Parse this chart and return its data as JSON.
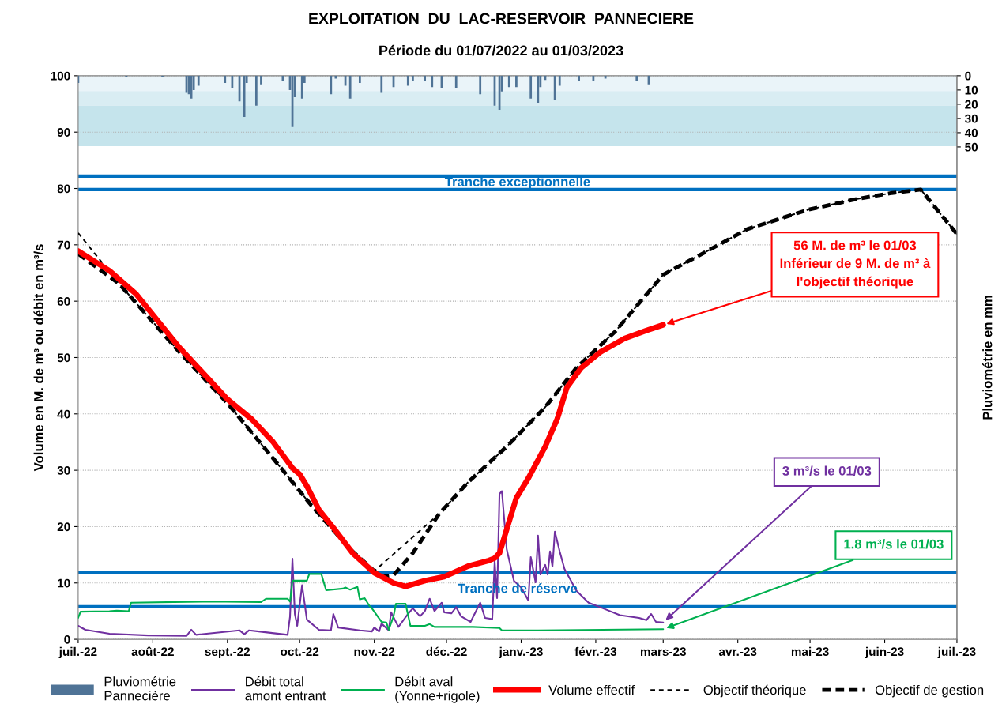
{
  "chart_data": {
    "type": "line",
    "title": "EXPLOITATION  DU  LAC-RESERVOIR  PANNECIERE",
    "subtitle": "Période du 01/07/2022 au 01/03/2023",
    "ylabel": "Volume en M. de m³ ou débit en m³/s",
    "y2label": "Pluviométrie en mm",
    "xlim": [
      "2022-07-01",
      "2023-07-01"
    ],
    "xticks": [
      {
        "value": "2022-07-01",
        "label": "juil.-22"
      },
      {
        "value": "2022-08-01",
        "label": "août-22"
      },
      {
        "value": "2022-09-01",
        "label": "sept.-22"
      },
      {
        "value": "2022-10-01",
        "label": "oct.-22"
      },
      {
        "value": "2022-11-01",
        "label": "nov.-22"
      },
      {
        "value": "2022-12-01",
        "label": "déc.-22"
      },
      {
        "value": "2023-01-01",
        "label": "janv.-23"
      },
      {
        "value": "2023-02-01",
        "label": "févr.-23"
      },
      {
        "value": "2023-03-01",
        "label": "mars-23"
      },
      {
        "value": "2023-04-01",
        "label": "avr.-23"
      },
      {
        "value": "2023-05-01",
        "label": "mai-23"
      },
      {
        "value": "2023-06-01",
        "label": "juin-23"
      },
      {
        "value": "2023-07-01",
        "label": "juil.-23"
      }
    ],
    "ylim": [
      0,
      100
    ],
    "yticks": [
      0,
      10,
      20,
      30,
      40,
      50,
      60,
      70,
      80,
      90,
      100
    ],
    "y2lim": [
      396,
      0
    ],
    "y2ticks": [
      0,
      10,
      20,
      30,
      40,
      50
    ],
    "grid": "y",
    "legend": "bottom",
    "series": [
      {
        "name": "Pluviométrie\nPannecière",
        "type": "bar",
        "axis": "y2",
        "color": "#4f7396",
        "x": [
          "2022-07-01",
          "2022-07-21",
          "2022-08-05",
          "2022-08-15",
          "2022-08-16",
          "2022-08-17",
          "2022-08-18",
          "2022-08-20",
          "2022-08-31",
          "2022-09-03",
          "2022-09-06",
          "2022-09-08",
          "2022-09-09",
          "2022-09-13",
          "2022-09-15",
          "2022-09-24",
          "2022-09-27",
          "2022-09-28",
          "2022-09-29",
          "2022-10-02",
          "2022-10-03",
          "2022-10-14",
          "2022-10-16",
          "2022-10-20",
          "2022-10-22",
          "2022-10-26",
          "2022-11-04",
          "2022-11-09",
          "2022-11-15",
          "2022-11-17",
          "2022-11-22",
          "2022-11-25",
          "2022-11-29",
          "2022-12-05",
          "2022-12-15",
          "2022-12-21",
          "2022-12-23",
          "2022-12-24",
          "2022-12-27",
          "2022-12-30",
          "2023-01-05",
          "2023-01-08",
          "2023-01-09",
          "2023-01-11",
          "2023-01-15",
          "2023-01-17",
          "2023-01-25",
          "2023-01-31",
          "2023-02-05",
          "2023-02-18",
          "2023-02-23"
        ],
        "values": [
          5,
          1,
          1,
          12,
          13,
          16,
          10,
          7,
          5,
          9,
          18,
          29,
          5,
          21,
          6,
          4,
          10,
          36,
          15,
          16,
          5,
          13,
          2,
          7,
          16,
          5,
          12,
          8,
          7,
          4,
          4,
          8,
          9,
          9,
          13,
          21,
          24,
          11,
          8,
          8,
          16,
          19,
          8,
          3,
          17,
          7,
          4,
          4,
          2,
          4,
          6
        ]
      },
      {
        "name": "Débit total\namont entrant",
        "color": "#7030a0",
        "x": [
          "2022-07-01",
          "2022-07-04",
          "2022-07-14",
          "2022-07-30",
          "2022-08-15",
          "2022-08-17",
          "2022-08-19",
          "2022-09-06",
          "2022-09-08",
          "2022-09-10",
          "2022-09-14",
          "2022-09-26",
          "2022-09-27",
          "2022-09-28",
          "2022-09-29",
          "2022-09-30",
          "2022-10-02",
          "2022-10-04",
          "2022-10-09",
          "2022-10-14",
          "2022-10-15",
          "2022-10-17",
          "2022-10-26",
          "2022-10-31",
          "2022-11-01",
          "2022-11-03",
          "2022-11-04",
          "2022-11-07",
          "2022-11-08",
          "2022-11-11",
          "2022-11-15",
          "2022-11-17",
          "2022-11-20",
          "2022-11-22",
          "2022-11-24",
          "2022-11-26",
          "2022-11-29",
          "2022-11-30",
          "2022-12-03",
          "2022-12-05",
          "2022-12-07",
          "2022-12-11",
          "2022-12-15",
          "2022-12-17",
          "2022-12-20",
          "2022-12-21",
          "2022-12-22",
          "2022-12-23",
          "2022-12-24",
          "2022-12-26",
          "2022-12-29",
          "2023-01-01",
          "2023-01-04",
          "2023-01-05",
          "2023-01-07",
          "2023-01-08",
          "2023-01-09",
          "2023-01-11",
          "2023-01-12",
          "2023-01-13",
          "2023-01-14",
          "2023-01-15",
          "2023-01-17",
          "2023-01-19",
          "2023-01-24",
          "2023-01-29",
          "2023-02-04",
          "2023-02-11",
          "2023-02-19",
          "2023-02-22",
          "2023-02-24",
          "2023-02-26",
          "2023-03-01"
        ],
        "values": [
          2.4,
          1.7,
          1.0,
          0.7,
          0.6,
          1.7,
          0.8,
          1.6,
          0.9,
          1.6,
          1.4,
          0.8,
          4,
          14.3,
          4.5,
          2.4,
          9.6,
          3.5,
          1.7,
          1.6,
          4.5,
          2.1,
          1.6,
          1.4,
          2.1,
          1.4,
          2.8,
          1.6,
          4.8,
          2.2,
          4.5,
          5.5,
          4.1,
          5,
          7.2,
          5,
          6.5,
          4.8,
          4.6,
          5.7,
          4.1,
          3.1,
          6.5,
          3.8,
          3.6,
          13.9,
          7.3,
          25.8,
          26.3,
          16,
          10.4,
          9.2,
          6.9,
          14.6,
          10.1,
          18.4,
          11.5,
          13.2,
          11.5,
          15.6,
          12.9,
          19.1,
          15.6,
          12.5,
          8.6,
          6.5,
          5.5,
          4.3,
          3.8,
          3.4,
          4.5,
          3.1,
          3.0
        ]
      },
      {
        "name": "Débit aval\n(Yonne+rigole)",
        "color": "#00b050",
        "x": [
          "2022-07-01",
          "2022-07-02",
          "2022-07-14",
          "2022-07-17",
          "2022-07-22",
          "2022-07-23",
          "2022-08-24",
          "2022-09-15",
          "2022-09-17",
          "2022-09-26",
          "2022-09-27",
          "2022-09-28",
          "2022-10-04",
          "2022-10-05",
          "2022-10-10",
          "2022-10-12",
          "2022-10-19",
          "2022-10-20",
          "2022-10-22",
          "2022-10-25",
          "2022-10-26",
          "2022-10-28",
          "2022-10-30",
          "2022-10-31",
          "2022-11-04",
          "2022-11-06",
          "2022-11-07",
          "2022-11-09",
          "2022-11-10",
          "2022-11-14",
          "2022-11-16",
          "2022-11-22",
          "2022-11-24",
          "2022-11-26",
          "2022-12-12",
          "2022-12-23",
          "2022-12-24",
          "2023-01-08",
          "2023-03-01"
        ],
        "values": [
          3.8,
          4.9,
          5.0,
          5.1,
          5.0,
          6.5,
          6.7,
          6.6,
          7.2,
          7.2,
          6.7,
          10.4,
          10.4,
          11.6,
          11.6,
          8.7,
          9.0,
          9.2,
          8.8,
          9.3,
          7.1,
          7.3,
          5.9,
          5.5,
          3.1,
          3.0,
          1.7,
          4.1,
          6.3,
          6.3,
          2.4,
          2.4,
          2.7,
          2.2,
          2.2,
          2.0,
          1.6,
          1.6,
          1.8
        ]
      },
      {
        "name": "Volume effectif",
        "color": "#ff0000",
        "x": [
          "2022-07-01",
          "2022-07-14",
          "2022-07-25",
          "2022-08-12",
          "2022-09-01",
          "2022-09-11",
          "2022-09-20",
          "2022-09-28",
          "2022-10-01",
          "2022-10-04",
          "2022-10-09",
          "2022-10-15",
          "2022-10-23",
          "2022-11-01",
          "2022-11-09",
          "2022-11-14",
          "2022-11-22",
          "2022-11-30",
          "2022-12-10",
          "2022-12-18",
          "2022-12-21",
          "2022-12-23",
          "2022-12-26",
          "2022-12-30",
          "2023-01-04",
          "2023-01-11",
          "2023-01-16",
          "2023-01-20",
          "2023-01-26",
          "2023-02-03",
          "2023-02-13",
          "2023-02-22",
          "2023-03-01"
        ],
        "values": [
          68.9,
          65.4,
          61.3,
          51.8,
          42.6,
          39.1,
          35,
          30.4,
          29.3,
          27.2,
          23,
          19.8,
          15.3,
          11.8,
          10,
          9.4,
          10.4,
          11.1,
          13,
          13.9,
          14.4,
          15.3,
          19.5,
          25.1,
          28.6,
          34.2,
          39.1,
          44.7,
          48.2,
          51,
          53.4,
          54.8,
          55.8
        ]
      },
      {
        "name": "Objectif théorique",
        "color": "#000000",
        "line_style": "dashed",
        "x": [
          "2022-07-01",
          "2022-07-18",
          "2022-08-12",
          "2022-09-01",
          "2022-09-20",
          "2022-10-06",
          "2022-10-22",
          "2022-11-01",
          "2022-11-28",
          "2022-12-10",
          "2022-12-26",
          "2023-01-11",
          "2023-01-24",
          "2023-02-09",
          "2023-03-01",
          "2023-03-18",
          "2023-04-05",
          "2023-04-30",
          "2023-05-20",
          "2023-06-04",
          "2023-06-16",
          "2023-07-01"
        ],
        "values": [
          72.1,
          63.1,
          51,
          41.9,
          32.1,
          23.7,
          16,
          12.1,
          22.3,
          27.9,
          34.2,
          41.2,
          48.2,
          54.6,
          64.7,
          68.6,
          72.8,
          76.2,
          78.1,
          79.2,
          79.8,
          71.9
        ]
      },
      {
        "name": "Objectif de gestion",
        "color": "#000000",
        "line_style": "dashed",
        "x": [
          "2022-07-01",
          "2022-07-18",
          "2022-08-12",
          "2022-09-01",
          "2022-09-20",
          "2022-10-06",
          "2022-10-22",
          "2022-11-01",
          "2022-11-04",
          "2022-11-09",
          "2022-11-17",
          "2022-11-28",
          "2022-12-10",
          "2022-12-26",
          "2023-01-11",
          "2023-01-24",
          "2023-02-09",
          "2023-03-01",
          "2023-03-18",
          "2023-04-05",
          "2023-04-30",
          "2023-05-20",
          "2023-06-04",
          "2023-06-16",
          "2023-07-01"
        ],
        "values": [
          68.4,
          63.1,
          51,
          41.9,
          32.1,
          23.7,
          16,
          12.1,
          11.1,
          11.4,
          15.3,
          22.3,
          27.9,
          34.2,
          41.2,
          48.2,
          54.6,
          64.7,
          68.6,
          72.8,
          76.2,
          78.1,
          79.2,
          79.8,
          71.9
        ]
      }
    ],
    "ref_lines": [
      {
        "axis": "y",
        "value": 82.2,
        "color": "#0070c0"
      },
      {
        "axis": "y",
        "value": 79.8,
        "label": "Tranche exceptionnelle",
        "color": "#0070c0"
      },
      {
        "axis": "y",
        "value": 11.9,
        "color": "#0070c0"
      },
      {
        "axis": "y",
        "value": 5.8,
        "label": "Tranche de réserve",
        "color": "#0070c0"
      }
    ],
    "bands": [
      {
        "axis": "y",
        "from": 97.3,
        "to": 100,
        "color": "#eaf4f9"
      },
      {
        "axis": "y",
        "from": 94.7,
        "to": 97.3,
        "color": "#d9edf3"
      },
      {
        "axis": "y",
        "from": 87.5,
        "to": 94.7,
        "color": "#c5e4ec"
      }
    ],
    "annotations": [
      {
        "text": "56 M. de m³ le 01/03\nInférieur de 9 M. de m³ à\nl'objectif théorique",
        "x": "2023-03-01",
        "y": 55.8
      },
      {
        "text": "3 m³/s le 01/03",
        "x": "2023-03-01",
        "y": 3.0
      },
      {
        "text": "1.8 m³/s le 01/03",
        "x": "2023-03-01",
        "y": 1.8
      }
    ]
  }
}
